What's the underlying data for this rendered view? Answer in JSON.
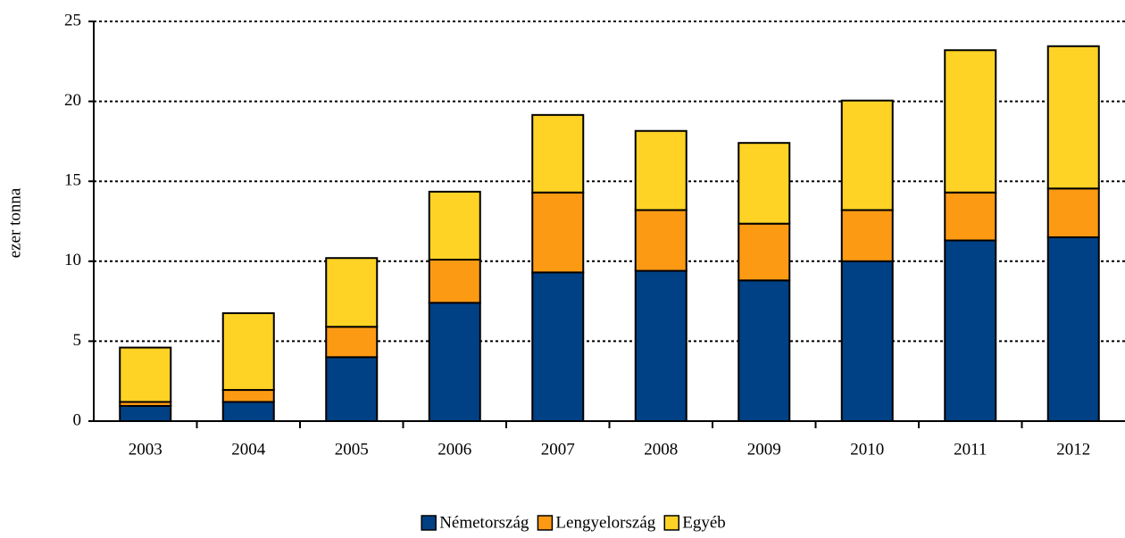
{
  "chart_data": {
    "type": "stacked_bar",
    "y_label": "ezer tonna",
    "categories": [
      "2003",
      "2004",
      "2005",
      "2006",
      "2007",
      "2008",
      "2009",
      "2010",
      "2011",
      "2012"
    ],
    "series": [
      {
        "name": "Németország",
        "color": "#004185",
        "values": [
          0.95,
          1.2,
          4.0,
          7.4,
          9.3,
          9.4,
          8.8,
          10.0,
          11.3,
          11.5
        ]
      },
      {
        "name": "Lengyelország",
        "color": "#fc9a14",
        "values": [
          0.25,
          0.75,
          1.9,
          2.7,
          5.0,
          3.8,
          3.55,
          3.2,
          3.0,
          3.05
        ]
      },
      {
        "name": "Egyéb",
        "color": "#fed325",
        "values": [
          3.4,
          4.8,
          4.3,
          4.25,
          4.85,
          4.95,
          5.05,
          6.85,
          8.9,
          8.9
        ]
      }
    ],
    "ylim": [
      0,
      25
    ],
    "yticks": [
      0,
      5,
      10,
      15,
      20,
      25
    ],
    "grid": true,
    "legend": "bottom"
  }
}
